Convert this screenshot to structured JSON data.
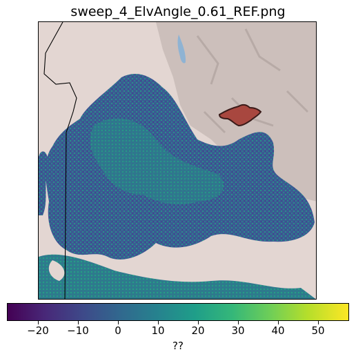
{
  "figure": {
    "title": "sweep_4_ElvAngle_0.61_REF.png"
  },
  "colorbar": {
    "label": "??",
    "colormap": "viridis",
    "range": [
      -27,
      57
    ],
    "ticks": [
      "−20",
      "−10",
      "0",
      "10",
      "20",
      "30",
      "40",
      "50"
    ],
    "tick_values": [
      -20,
      -10,
      0,
      10,
      20,
      30,
      40,
      50
    ]
  },
  "map": {
    "basemap": "shaded-relief terrain",
    "overlays": [
      "state-boundary-lines",
      "reflectivity-field",
      "fire-perimeter-polygon"
    ],
    "colors": {
      "terrain_low": "#e3d6d2",
      "terrain_high": "#bfb3ae",
      "lake": "#8fb3d3",
      "fire_fill": "#a8473f",
      "boundary": "#000000"
    }
  }
}
